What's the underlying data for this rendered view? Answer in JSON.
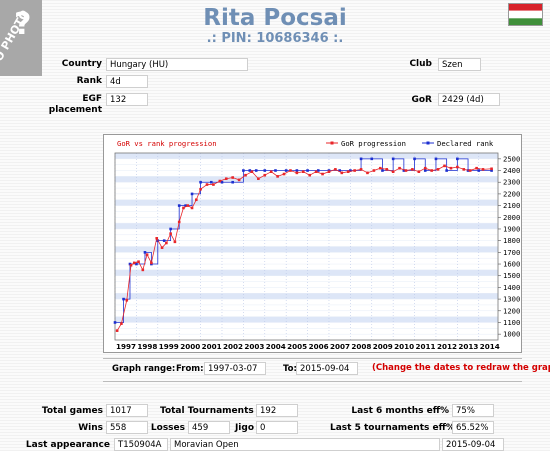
{
  "nophoto_text": "NO PHOTO",
  "header": {
    "name": "Rita Pocsai",
    "pin": ".: PIN: 10686346 :."
  },
  "profile": {
    "country_label": "Country",
    "country_value": "Hungary (HU)",
    "club_label": "Club",
    "club_value": "Szen",
    "rank_label": "Rank",
    "rank_value": "4d",
    "egf_label": "EGF placement",
    "egf_value": "132",
    "gor_label": "GoR",
    "gor_value": "2429 (4d)"
  },
  "colors": {
    "title": "#6f8fb5",
    "gor_series": "#e8262a",
    "rank_series": "#1c2fd0",
    "redraw": "#d40000",
    "stripe": "#dde6f7"
  },
  "chart_data": {
    "type": "line",
    "title": "GoR vs rank progression",
    "legend": [
      "GoR progression",
      "Declared rank"
    ],
    "legend_position": "top-right",
    "grid": true,
    "x_ticks": [
      "1997",
      "1998",
      "1999",
      "2000",
      "2001",
      "2002",
      "2003",
      "2004",
      "2005",
      "2006",
      "2007",
      "2008",
      "2009",
      "2010",
      "2011",
      "2012",
      "2013",
      "2014"
    ],
    "y_ticks_gor": [
      "2500",
      "2400",
      "2300",
      "2200",
      "2100",
      "2000",
      "1900",
      "1800",
      "1700",
      "1600",
      "1500",
      "1400",
      "1300",
      "1200",
      "1100",
      "1000"
    ],
    "y_ticks_rank": [
      "5d",
      "4d",
      "3d",
      "2d",
      "1d",
      "1k",
      "2k",
      "3k",
      "4k",
      "5k",
      "6k",
      "7k",
      "8k",
      "9k",
      "10k",
      "11k"
    ],
    "ylim": [
      950,
      2550
    ],
    "series": [
      {
        "name": "GoR progression",
        "x": [
          1997.1,
          1997.3,
          1997.55,
          1997.75,
          1997.9,
          1998.1,
          1998.3,
          1998.5,
          1998.7,
          1998.95,
          1999.2,
          1999.4,
          1999.6,
          1999.8,
          2000.0,
          2000.2,
          2000.4,
          2000.6,
          2000.8,
          2001.0,
          2001.3,
          2001.6,
          2001.9,
          2002.2,
          2002.5,
          2002.8,
          2003.1,
          2003.4,
          2003.7,
          2004.0,
          2004.3,
          2004.6,
          2004.9,
          2005.2,
          2005.5,
          2005.8,
          2006.1,
          2006.4,
          2006.7,
          2007.0,
          2007.3,
          2007.6,
          2007.9,
          2008.2,
          2008.5,
          2008.8,
          2009.1,
          2009.4,
          2009.7,
          2010.0,
          2010.3,
          2010.6,
          2010.9,
          2011.2,
          2011.5,
          2011.8,
          2012.1,
          2012.4,
          2012.7,
          2013.0,
          2013.3,
          2013.6,
          2013.9,
          2014.2,
          2014.6
        ],
        "values": [
          1030,
          1090,
          1290,
          1590,
          1610,
          1620,
          1550,
          1680,
          1610,
          1820,
          1740,
          1780,
          1860,
          1790,
          1960,
          2080,
          2100,
          2080,
          2150,
          2240,
          2280,
          2280,
          2310,
          2330,
          2340,
          2320,
          2360,
          2390,
          2330,
          2360,
          2390,
          2350,
          2370,
          2400,
          2380,
          2390,
          2360,
          2390,
          2370,
          2390,
          2410,
          2380,
          2390,
          2400,
          2410,
          2380,
          2400,
          2420,
          2410,
          2390,
          2420,
          2400,
          2410,
          2390,
          2420,
          2400,
          2410,
          2440,
          2420,
          2430,
          2410,
          2400,
          2420,
          2410,
          2415
        ]
      },
      {
        "name": "Declared rank",
        "x": [
          1997.0,
          1997.4,
          1997.7,
          1998.0,
          1998.4,
          1998.7,
          1999.0,
          1999.3,
          1999.6,
          2000.0,
          2000.3,
          2000.6,
          2001.0,
          2001.5,
          2002.0,
          2002.5,
          2003.0,
          2003.3,
          2003.6,
          2004.0,
          2004.5,
          2005.0,
          2005.5,
          2006.0,
          2006.5,
          2007.0,
          2007.5,
          2008.0,
          2008.5,
          2009.0,
          2009.5,
          2010.0,
          2010.5,
          2011.0,
          2011.5,
          2012.0,
          2012.5,
          2013.0,
          2013.5,
          2014.0,
          2014.6
        ],
        "values": [
          1100,
          1300,
          1600,
          1600,
          1700,
          1600,
          1800,
          1800,
          1900,
          2100,
          2100,
          2200,
          2300,
          2300,
          2300,
          2300,
          2400,
          2400,
          2400,
          2400,
          2400,
          2400,
          2400,
          2400,
          2400,
          2400,
          2400,
          2400,
          2500,
          2500,
          2400,
          2500,
          2400,
          2500,
          2400,
          2500,
          2400,
          2500,
          2400,
          2400,
          2400
        ]
      }
    ]
  },
  "range": {
    "graph_range_label": "Graph range:",
    "from_label": "From:",
    "from_value": "1997-03-07",
    "to_label": "To:",
    "to_value": "2015-09-04",
    "redraw_text": "(Change the dates to redraw the graph)"
  },
  "stats": {
    "total_games_label": "Total games",
    "total_games_value": "1017",
    "total_tournaments_label": "Total Tournaments",
    "total_tournaments_value": "192",
    "last6_label": "Last 6 months eff%",
    "last6_value": "75%",
    "wins_label": "Wins",
    "wins_value": "558",
    "losses_label": "Losses",
    "losses_value": "459",
    "jigo_label": "Jigo",
    "jigo_value": "0",
    "last5_label": "Last 5 tournaments eff%",
    "last5_value": "65.52%",
    "last_app_label": "Last appearance",
    "last_app_code": "T150904A",
    "last_app_name": "Moravian Open",
    "last_app_date": "2015-09-04"
  }
}
